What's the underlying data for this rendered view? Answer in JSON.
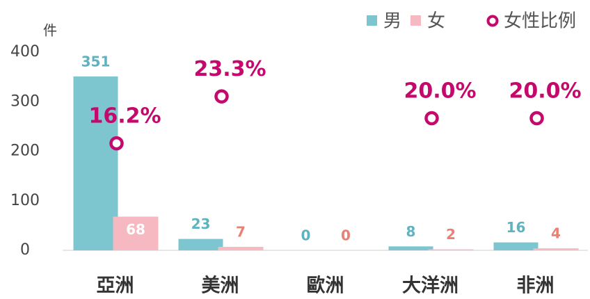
{
  "chart_data": {
    "type": "bar",
    "y_label": "件",
    "categories": [
      "亞洲",
      "美洲",
      "歐洲",
      "大洋洲",
      "非洲"
    ],
    "series": [
      {
        "name": "男",
        "color": "#7ec6cf",
        "label_color": "#5fb3bf",
        "values": [
          351,
          23,
          0,
          8,
          16
        ]
      },
      {
        "name": "女",
        "color": "#f6b9c1",
        "label_color": "#ec7f73",
        "values": [
          68,
          7,
          0,
          2,
          4
        ]
      },
      {
        "name": "女性比例",
        "type": "scatter",
        "axis": "y2",
        "color": "#c5086b",
        "values": [
          16.2,
          23.3,
          null,
          20.0,
          20.0
        ],
        "value_labels": [
          "16.2%",
          "23.3%",
          null,
          "20.0%",
          "20.0%"
        ]
      }
    ],
    "ylim": [
      0,
      400
    ],
    "yticks": [
      0,
      100,
      200,
      300,
      400
    ],
    "y2lim": [
      0,
      30
    ]
  }
}
